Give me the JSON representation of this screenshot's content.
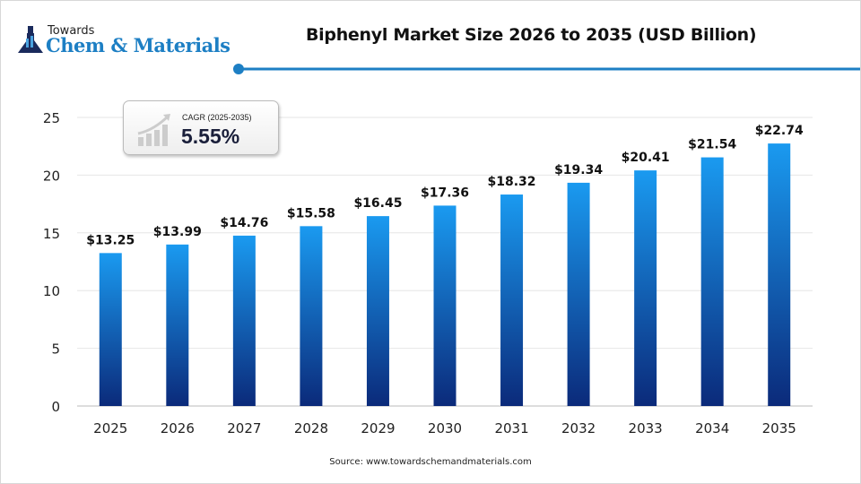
{
  "logo": {
    "line1": "Towards",
    "line2": "Chem & Materials"
  },
  "cagr": {
    "label": "CAGR (2025-2035)",
    "value": "5.55%"
  },
  "source": "Source: www.towardschemandmaterials.com",
  "colors": {
    "bar_top": "#1a9af0",
    "bar_bottom": "#0b2a7a",
    "accent": "#1d7fc4"
  },
  "chart_data": {
    "type": "bar",
    "title": "Biphenyl Market Size 2026 to 2035 (USD Billion)",
    "categories": [
      "2025",
      "2026",
      "2027",
      "2028",
      "2029",
      "2030",
      "2031",
      "2032",
      "2033",
      "2034",
      "2035"
    ],
    "values": [
      13.25,
      13.99,
      14.76,
      15.58,
      16.45,
      17.36,
      18.32,
      19.34,
      20.41,
      21.54,
      22.74
    ],
    "data_labels": [
      "$13.25",
      "$13.99",
      "$14.76",
      "$15.58",
      "$16.45",
      "$17.36",
      "$18.32",
      "$19.34",
      "$20.41",
      "$21.54",
      "$22.74"
    ],
    "yticks": [
      "0",
      "5",
      "10",
      "15",
      "20",
      "25"
    ],
    "ylim": [
      0,
      25
    ],
    "grid": true,
    "xlabel": "",
    "ylabel": ""
  }
}
